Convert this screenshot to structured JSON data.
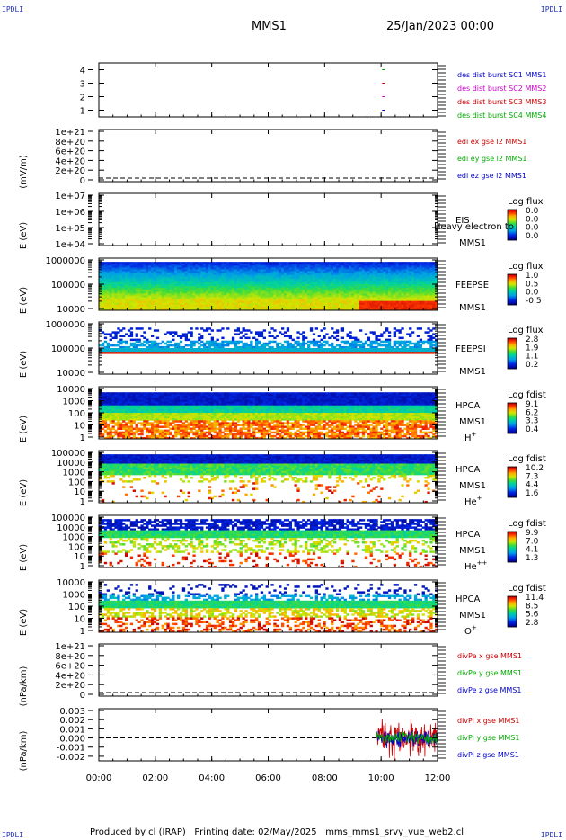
{
  "header": {
    "corner_label": "IPDLI",
    "mission": "MMS1",
    "date_time": "25/Jan/2023 00:00"
  },
  "footer": {
    "text": "Produced by cl (IRAP)   Printing date: 02/May/2025   mms_mms1_srvy_vue_web2.cl"
  },
  "colors": {
    "blue": "#0000cc",
    "magenta": "#cc00cc",
    "red": "#cc0000",
    "green": "#00aa00"
  },
  "chart_data": [
    {
      "type": "line",
      "yticks": [
        "4",
        "3",
        "2",
        "1"
      ],
      "ylim": [
        0.5,
        4.5
      ],
      "legend": [
        {
          "label": "des dist burst SC1 MMS1",
          "color": "#0000cc"
        },
        {
          "label": "des dist burst SC2 MMS2",
          "color": "#cc00cc"
        },
        {
          "label": "des dist burst SC3 MMS3",
          "color": "#cc0000"
        },
        {
          "label": "des dist burst SC4 MMS4",
          "color": "#00aa00"
        }
      ],
      "series": [
        {
          "x": [
            "10:05"
          ],
          "y": [
            4
          ],
          "color": "#00aa00"
        },
        {
          "x": [
            "10:05"
          ],
          "y": [
            3
          ],
          "color": "#cc0000"
        },
        {
          "x": [
            "10:05"
          ],
          "y": [
            2
          ],
          "color": "#cc00cc"
        },
        {
          "x": [
            "10:05"
          ],
          "y": [
            1
          ],
          "color": "#0000cc"
        }
      ]
    },
    {
      "type": "line",
      "ylabel": "(mV/m)",
      "yticks": [
        "1e+21",
        "8e+20",
        "6e+20",
        "4e+20",
        "2e+20",
        "0"
      ],
      "legend": [
        {
          "label": "edi ex gse l2 MMS1",
          "color": "#cc0000"
        },
        {
          "label": "edi ey gse l2 MMS1",
          "color": "#00aa00"
        },
        {
          "label": "edi ez gse l2 MMS1",
          "color": "#0000cc"
        }
      ],
      "dashed_zero": true
    },
    {
      "type": "heatmap",
      "ylabel": "E (eV)",
      "yticks": [
        "1e+07",
        "1e+06",
        "1e+05",
        "1e+04"
      ],
      "instrument": "EIS",
      "spacecraft": "MMS1",
      "overlay_text": "Heavy electron to",
      "colorbar_title": "Log flux",
      "colorbar_ticks": [
        "0.0",
        "0.0",
        "0.0",
        "0.0"
      ],
      "empty": true
    },
    {
      "type": "heatmap",
      "ylabel": "E (eV)",
      "yticks": [
        "1000000",
        "100000",
        "10000"
      ],
      "instrument": "FEEPSE",
      "spacecraft": "MMS1",
      "colorbar_title": "Log flux",
      "colorbar_ticks": [
        "1.0",
        "0.5",
        "0.0",
        "-0.5"
      ],
      "pattern": "feepse"
    },
    {
      "type": "heatmap",
      "ylabel": "E (eV)",
      "yticks": [
        "1000000",
        "100000",
        "10000"
      ],
      "instrument": "FEEPSI",
      "spacecraft": "MMS1",
      "colorbar_title": "Log flux",
      "colorbar_ticks": [
        "2.8",
        "1.9",
        "1.1",
        "0.2"
      ],
      "pattern": "feepsi"
    },
    {
      "type": "heatmap",
      "ylabel": "E (eV)",
      "yticks": [
        "10000",
        "1000",
        "100",
        "10",
        "1"
      ],
      "instrument": "HPCA",
      "spacecraft": "MMS1",
      "species": "H",
      "species_sup": "+",
      "colorbar_title": "Log fdist",
      "colorbar_ticks": [
        "9.1",
        "6.2",
        "3.3",
        "0.4"
      ],
      "pattern": "hplus"
    },
    {
      "type": "heatmap",
      "ylabel": "E (eV)",
      "yticks": [
        "100000",
        "10000",
        "1000",
        "100",
        "10",
        "1"
      ],
      "instrument": "HPCA",
      "spacecraft": "MMS1",
      "species": "He",
      "species_sup": "+",
      "colorbar_title": "Log fdist",
      "colorbar_ticks": [
        "10.2",
        "7.3",
        "4.4",
        "1.6"
      ],
      "pattern": "heplus"
    },
    {
      "type": "heatmap",
      "ylabel": "E (eV)",
      "yticks": [
        "100000",
        "10000",
        "1000",
        "100",
        "10",
        "1"
      ],
      "instrument": "HPCA",
      "spacecraft": "MMS1",
      "species": "He",
      "species_sup": "++",
      "colorbar_title": "Log fdist",
      "colorbar_ticks": [
        "9.9",
        "7.0",
        "4.1",
        "1.3"
      ],
      "pattern": "heplusplus"
    },
    {
      "type": "heatmap",
      "ylabel": "E (eV)",
      "yticks": [
        "10000",
        "1000",
        "100",
        "10",
        "1"
      ],
      "instrument": "HPCA",
      "spacecraft": "MMS1",
      "species": "O",
      "species_sup": "+",
      "colorbar_title": "Log fdist",
      "colorbar_ticks": [
        "11.4",
        "8.5",
        "5.6",
        "2.8"
      ],
      "pattern": "oplus"
    },
    {
      "type": "line",
      "ylabel": "(nPa/km)",
      "yticks": [
        "1e+21",
        "8e+20",
        "6e+20",
        "4e+20",
        "2e+20",
        "0"
      ],
      "legend": [
        {
          "label": "divPe x gse MMS1",
          "color": "#cc0000"
        },
        {
          "label": "divPe y gse MMS1",
          "color": "#00aa00"
        },
        {
          "label": "divPe z gse MMS1",
          "color": "#0000cc"
        }
      ],
      "dashed_zero": true
    },
    {
      "type": "line",
      "ylabel": "(nPa/km)",
      "yticks": [
        "0.003",
        "0.002",
        "0.001",
        "0.000",
        "-0.001",
        "-0.002"
      ],
      "ylim": [
        -0.0025,
        0.0032
      ],
      "legend": [
        {
          "label": "divPi x gse MMS1",
          "color": "#cc0000"
        },
        {
          "label": "divPi y gse MMS1",
          "color": "#00aa00"
        },
        {
          "label": "divPi z gse MMS1",
          "color": "#0000cc"
        }
      ],
      "dashed_zero": true,
      "noise_interval": [
        "09:50",
        "12:00"
      ],
      "noise_amplitude": {
        "x": 0.0025,
        "y": 0.0008,
        "z": 0.0012
      }
    }
  ],
  "xaxis": {
    "ticks": [
      "00:00",
      "02:00",
      "04:00",
      "06:00",
      "08:00",
      "10:00",
      "12:00"
    ],
    "range_hours": [
      0,
      12
    ]
  }
}
